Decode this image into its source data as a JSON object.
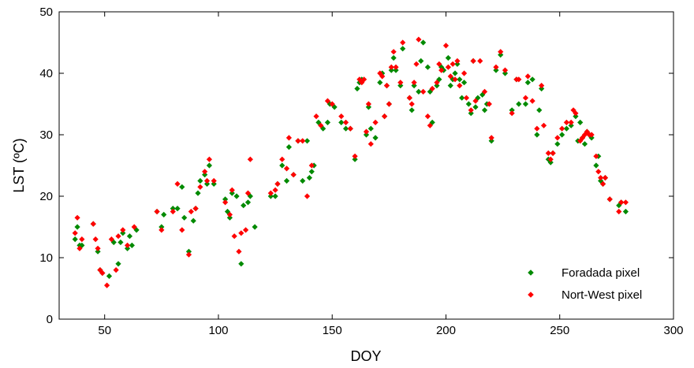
{
  "chart_data": {
    "type": "scatter",
    "title": "",
    "xlabel": "DOY",
    "ylabel": "LST (ºC)",
    "xlim": [
      30,
      300
    ],
    "ylim": [
      0,
      50
    ],
    "xticks": [
      50,
      100,
      150,
      200,
      250,
      300
    ],
    "yticks": [
      0,
      10,
      20,
      30,
      40,
      50
    ],
    "grid": false,
    "legend_position": "bottom-right",
    "series": [
      {
        "name": "Foradada pixel",
        "color": "#008a00",
        "marker": "diamond",
        "points": [
          [
            37,
            13
          ],
          [
            38,
            15
          ],
          [
            39,
            12
          ],
          [
            40,
            12
          ],
          [
            45,
            15.5
          ],
          [
            47,
            11
          ],
          [
            48,
            8
          ],
          [
            49,
            7.5
          ],
          [
            52,
            7
          ],
          [
            54,
            12.5
          ],
          [
            56,
            9
          ],
          [
            57,
            12.5
          ],
          [
            58,
            14
          ],
          [
            60,
            11.5
          ],
          [
            61,
            13.5
          ],
          [
            62,
            12
          ],
          [
            64,
            14.5
          ],
          [
            73,
            17.5
          ],
          [
            75,
            15
          ],
          [
            76,
            17
          ],
          [
            80,
            18
          ],
          [
            82,
            18
          ],
          [
            84,
            21.5
          ],
          [
            85,
            16.5
          ],
          [
            87,
            11
          ],
          [
            89,
            16
          ],
          [
            90,
            18
          ],
          [
            91,
            20.5
          ],
          [
            92,
            22.5
          ],
          [
            94,
            23.5
          ],
          [
            95,
            22
          ],
          [
            96,
            25
          ],
          [
            98,
            22
          ],
          [
            103,
            19.5
          ],
          [
            104,
            17.5
          ],
          [
            105,
            16.5
          ],
          [
            106,
            20.5
          ],
          [
            108,
            20
          ],
          [
            110,
            9
          ],
          [
            111,
            18.5
          ],
          [
            113,
            19
          ],
          [
            114,
            20
          ],
          [
            116,
            15
          ],
          [
            123,
            20
          ],
          [
            125,
            20
          ],
          [
            126,
            22
          ],
          [
            128,
            25
          ],
          [
            130,
            22.5
          ],
          [
            131,
            28
          ],
          [
            133,
            23.5
          ],
          [
            135,
            29
          ],
          [
            137,
            22.5
          ],
          [
            139,
            29
          ],
          [
            140,
            23
          ],
          [
            141,
            24
          ],
          [
            142,
            25
          ],
          [
            144,
            32
          ],
          [
            146,
            31
          ],
          [
            148,
            32
          ],
          [
            149,
            35
          ],
          [
            151,
            34.5
          ],
          [
            154,
            32
          ],
          [
            156,
            31
          ],
          [
            158,
            31
          ],
          [
            160,
            26
          ],
          [
            161,
            37.5
          ],
          [
            162,
            38.5
          ],
          [
            163,
            39
          ],
          [
            165,
            30
          ],
          [
            166,
            34.5
          ],
          [
            167,
            31
          ],
          [
            169,
            29.5
          ],
          [
            171,
            38.5
          ],
          [
            172,
            40
          ],
          [
            173,
            33
          ],
          [
            174,
            38
          ],
          [
            175,
            35
          ],
          [
            176,
            40.5
          ],
          [
            177,
            42.5
          ],
          [
            178,
            40.5
          ],
          [
            180,
            38
          ],
          [
            181,
            44
          ],
          [
            184,
            36
          ],
          [
            185,
            34
          ],
          [
            186,
            38
          ],
          [
            188,
            37
          ],
          [
            189,
            42
          ],
          [
            190,
            45
          ],
          [
            192,
            41
          ],
          [
            193,
            37
          ],
          [
            194,
            32
          ],
          [
            196,
            38
          ],
          [
            197,
            39
          ],
          [
            198,
            41
          ],
          [
            199,
            40.5
          ],
          [
            201,
            42.5
          ],
          [
            202,
            38
          ],
          [
            203,
            39
          ],
          [
            204,
            40
          ],
          [
            205,
            41.5
          ],
          [
            206,
            39
          ],
          [
            207,
            36
          ],
          [
            208,
            38.5
          ],
          [
            210,
            35
          ],
          [
            211,
            33.5
          ],
          [
            212,
            42
          ],
          [
            213,
            34.5
          ],
          [
            214,
            36
          ],
          [
            216,
            36.5
          ],
          [
            217,
            34
          ],
          [
            218,
            35
          ],
          [
            220,
            29
          ],
          [
            222,
            40.5
          ],
          [
            224,
            43
          ],
          [
            226,
            40
          ],
          [
            229,
            34
          ],
          [
            231,
            39
          ],
          [
            232,
            35
          ],
          [
            235,
            35
          ],
          [
            236,
            38.5
          ],
          [
            238,
            39
          ],
          [
            240,
            30
          ],
          [
            241,
            34
          ],
          [
            242,
            37.5
          ],
          [
            245,
            26
          ],
          [
            246,
            25.5
          ],
          [
            247,
            27
          ],
          [
            249,
            28.5
          ],
          [
            251,
            30
          ],
          [
            253,
            31
          ],
          [
            255,
            31.5
          ],
          [
            257,
            33
          ],
          [
            258,
            29
          ],
          [
            259,
            32
          ],
          [
            260,
            29.5
          ],
          [
            261,
            28.5
          ],
          [
            262,
            30.5
          ],
          [
            263,
            30
          ],
          [
            264,
            29.5
          ],
          [
            266,
            25
          ],
          [
            267,
            26.5
          ],
          [
            268,
            22.5
          ],
          [
            269,
            22
          ],
          [
            270,
            23
          ],
          [
            272,
            19.5
          ],
          [
            276,
            18.5
          ],
          [
            277,
            19
          ],
          [
            279,
            17.5
          ]
        ]
      },
      {
        "name": "Nort-West pixel",
        "color": "#ff0000",
        "marker": "diamond",
        "points": [
          [
            37,
            14
          ],
          [
            38,
            16.5
          ],
          [
            39,
            11.5
          ],
          [
            40,
            13
          ],
          [
            45,
            15.5
          ],
          [
            46,
            13
          ],
          [
            47,
            11.5
          ],
          [
            48,
            8
          ],
          [
            49,
            7.5
          ],
          [
            51,
            5.5
          ],
          [
            53,
            13
          ],
          [
            55,
            8
          ],
          [
            56,
            13.5
          ],
          [
            58,
            14.5
          ],
          [
            60,
            12
          ],
          [
            63,
            15
          ],
          [
            73,
            17.5
          ],
          [
            75,
            14.5
          ],
          [
            80,
            17.5
          ],
          [
            82,
            22
          ],
          [
            84,
            14.5
          ],
          [
            87,
            10.5
          ],
          [
            88,
            17.5
          ],
          [
            90,
            18
          ],
          [
            92,
            21.5
          ],
          [
            94,
            24
          ],
          [
            95,
            22.5
          ],
          [
            96,
            26
          ],
          [
            98,
            22.5
          ],
          [
            103,
            19
          ],
          [
            105,
            17
          ],
          [
            106,
            21
          ],
          [
            107,
            13.5
          ],
          [
            109,
            11
          ],
          [
            110,
            14
          ],
          [
            112,
            14.5
          ],
          [
            113,
            20.5
          ],
          [
            114,
            26
          ],
          [
            123,
            20.5
          ],
          [
            125,
            21
          ],
          [
            126,
            22
          ],
          [
            128,
            26
          ],
          [
            130,
            24.5
          ],
          [
            131,
            29.5
          ],
          [
            133,
            23.5
          ],
          [
            135,
            29
          ],
          [
            137,
            29
          ],
          [
            139,
            20
          ],
          [
            141,
            25
          ],
          [
            143,
            33
          ],
          [
            145,
            31.5
          ],
          [
            148,
            35.5
          ],
          [
            150,
            35
          ],
          [
            154,
            33
          ],
          [
            156,
            32
          ],
          [
            158,
            31
          ],
          [
            160,
            26.5
          ],
          [
            162,
            39
          ],
          [
            163,
            38.5
          ],
          [
            164,
            39
          ],
          [
            165,
            30.5
          ],
          [
            166,
            35
          ],
          [
            167,
            28.5
          ],
          [
            169,
            32
          ],
          [
            171,
            40
          ],
          [
            172,
            39.5
          ],
          [
            173,
            33
          ],
          [
            174,
            38
          ],
          [
            175,
            35
          ],
          [
            176,
            41
          ],
          [
            177,
            43.5
          ],
          [
            178,
            41
          ],
          [
            180,
            38.5
          ],
          [
            181,
            45
          ],
          [
            184,
            36
          ],
          [
            185,
            35
          ],
          [
            186,
            38.5
          ],
          [
            187,
            41.5
          ],
          [
            188,
            45.5
          ],
          [
            190,
            37
          ],
          [
            192,
            33
          ],
          [
            193,
            31.5
          ],
          [
            194,
            37.5
          ],
          [
            196,
            38.5
          ],
          [
            197,
            41.5
          ],
          [
            198,
            40.5
          ],
          [
            200,
            44.5
          ],
          [
            201,
            41
          ],
          [
            202,
            39.5
          ],
          [
            203,
            41.5
          ],
          [
            204,
            39
          ],
          [
            205,
            42
          ],
          [
            206,
            38
          ],
          [
            208,
            40
          ],
          [
            209,
            36
          ],
          [
            211,
            34
          ],
          [
            212,
            42
          ],
          [
            213,
            35.5
          ],
          [
            215,
            42
          ],
          [
            217,
            37
          ],
          [
            219,
            35
          ],
          [
            220,
            29.5
          ],
          [
            222,
            41
          ],
          [
            224,
            43.5
          ],
          [
            226,
            40.5
          ],
          [
            229,
            33.5
          ],
          [
            231,
            39
          ],
          [
            232,
            39
          ],
          [
            235,
            36
          ],
          [
            236,
            39.5
          ],
          [
            238,
            35.5
          ],
          [
            240,
            31
          ],
          [
            242,
            38
          ],
          [
            243,
            31.5
          ],
          [
            245,
            27
          ],
          [
            246,
            26
          ],
          [
            247,
            27
          ],
          [
            249,
            29.5
          ],
          [
            251,
            31
          ],
          [
            253,
            32
          ],
          [
            255,
            32
          ],
          [
            256,
            34
          ],
          [
            257,
            33.5
          ],
          [
            259,
            29
          ],
          [
            260,
            29.5
          ],
          [
            261,
            30
          ],
          [
            262,
            30.5
          ],
          [
            263,
            30
          ],
          [
            264,
            30
          ],
          [
            266,
            26.5
          ],
          [
            267,
            24
          ],
          [
            268,
            23
          ],
          [
            269,
            22
          ],
          [
            270,
            23
          ],
          [
            272,
            19.5
          ],
          [
            276,
            17.5
          ],
          [
            277,
            19
          ],
          [
            279,
            19
          ]
        ]
      }
    ]
  }
}
